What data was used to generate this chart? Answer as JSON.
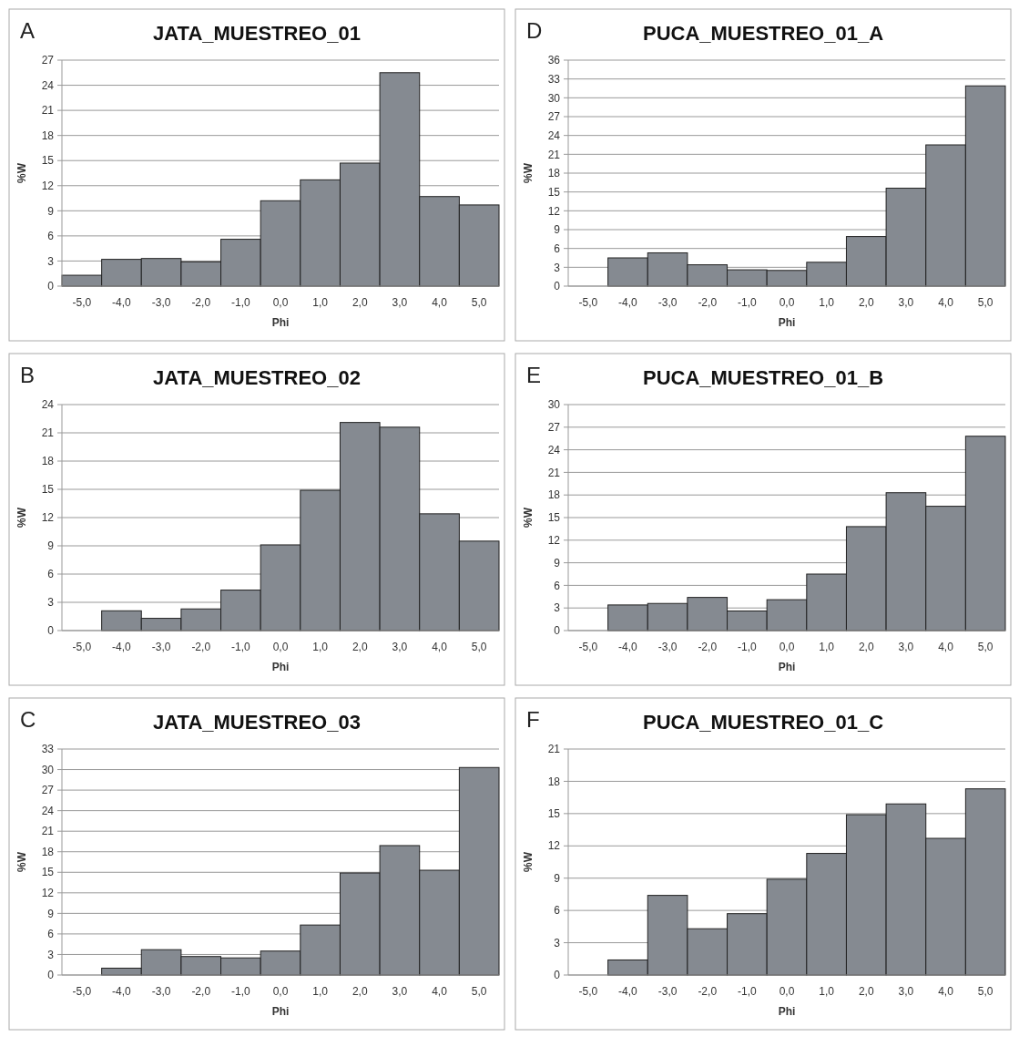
{
  "chart_data": [
    {
      "type": "bar",
      "title": "JATA_MUESTREO_01",
      "annotations": [
        "A"
      ],
      "xlabel": "Phi",
      "ylabel": "%W",
      "categories": [
        "-5,0",
        "-4,0",
        "-3,0",
        "-2,0",
        "-1,0",
        "0,0",
        "1,0",
        "2,0",
        "3,0",
        "4,0",
        "5,0"
      ],
      "values": [
        1.3,
        3.2,
        3.3,
        2.9,
        5.6,
        10.2,
        12.7,
        14.7,
        25.5,
        10.7,
        9.7
      ],
      "color": "#858a91",
      "ylim": [
        0,
        27
      ],
      "yticks": [
        0,
        3,
        6,
        9,
        12,
        15,
        18,
        21,
        24,
        27
      ],
      "grid": "y"
    },
    {
      "type": "bar",
      "title": "PUCA_MUESTREO_01_A",
      "annotations": [
        "D"
      ],
      "xlabel": "Phi",
      "ylabel": "%W",
      "categories": [
        "-5,0",
        "-4,0",
        "-3,0",
        "-2,0",
        "-1,0",
        "0,0",
        "1,0",
        "2,0",
        "3,0",
        "4,0",
        "5,0"
      ],
      "values": [
        null,
        4.5,
        5.3,
        3.4,
        2.6,
        2.5,
        3.8,
        7.9,
        15.6,
        22.5,
        31.9
      ],
      "color": "#858a91",
      "ylim": [
        0,
        36
      ],
      "yticks": [
        0,
        3,
        6,
        9,
        12,
        15,
        18,
        21,
        24,
        27,
        30,
        33,
        36
      ],
      "grid": "y"
    },
    {
      "type": "bar",
      "title": "JATA_MUESTREO_02",
      "annotations": [
        "B"
      ],
      "xlabel": "Phi",
      "ylabel": "%W",
      "categories": [
        "-5,0",
        "-4,0",
        "-3,0",
        "-2,0",
        "-1,0",
        "0,0",
        "1,0",
        "2,0",
        "3,0",
        "4,0",
        "5,0"
      ],
      "values": [
        null,
        2.1,
        1.3,
        2.3,
        4.3,
        9.1,
        14.9,
        22.1,
        21.6,
        12.4,
        9.5
      ],
      "color": "#858a91",
      "ylim": [
        0,
        24
      ],
      "yticks": [
        0,
        3,
        6,
        9,
        12,
        15,
        18,
        21,
        24
      ],
      "grid": "y"
    },
    {
      "type": "bar",
      "title": "PUCA_MUESTREO_01_B",
      "annotations": [
        "E"
      ],
      "xlabel": "Phi",
      "ylabel": "%W",
      "categories": [
        "-5,0",
        "-4,0",
        "-3,0",
        "-2,0",
        "-1,0",
        "0,0",
        "1,0",
        "2,0",
        "3,0",
        "4,0",
        "5,0"
      ],
      "values": [
        null,
        3.4,
        3.6,
        4.4,
        2.6,
        4.1,
        7.5,
        13.8,
        18.3,
        16.5,
        25.8
      ],
      "color": "#858a91",
      "ylim": [
        0,
        30
      ],
      "yticks": [
        0,
        3,
        6,
        9,
        12,
        15,
        18,
        21,
        24,
        27,
        30
      ],
      "grid": "y"
    },
    {
      "type": "bar",
      "title": "JATA_MUESTREO_03",
      "annotations": [
        "C"
      ],
      "xlabel": "Phi",
      "ylabel": "%W",
      "categories": [
        "-5,0",
        "-4,0",
        "-3,0",
        "-2,0",
        "-1,0",
        "0,0",
        "1,0",
        "2,0",
        "3,0",
        "4,0",
        "5,0"
      ],
      "values": [
        null,
        1.0,
        3.7,
        2.7,
        2.5,
        3.5,
        7.3,
        14.9,
        18.9,
        15.3,
        30.3
      ],
      "color": "#858a91",
      "ylim": [
        0,
        33
      ],
      "yticks": [
        0,
        3,
        6,
        9,
        12,
        15,
        18,
        21,
        24,
        27,
        30,
        33
      ],
      "grid": "y"
    },
    {
      "type": "bar",
      "title": "PUCA_MUESTREO_01_C",
      "annotations": [
        "F"
      ],
      "xlabel": "Phi",
      "ylabel": "%W",
      "categories": [
        "-5,0",
        "-4,0",
        "-3,0",
        "-2,0",
        "-1,0",
        "0,0",
        "1,0",
        "2,0",
        "3,0",
        "4,0",
        "5,0"
      ],
      "values": [
        null,
        1.4,
        7.4,
        4.3,
        5.7,
        8.9,
        11.3,
        14.9,
        15.9,
        12.7,
        17.3
      ],
      "color": "#858a91",
      "ylim": [
        0,
        21
      ],
      "yticks": [
        0,
        3,
        6,
        9,
        12,
        15,
        18,
        21
      ],
      "grid": "y"
    }
  ]
}
